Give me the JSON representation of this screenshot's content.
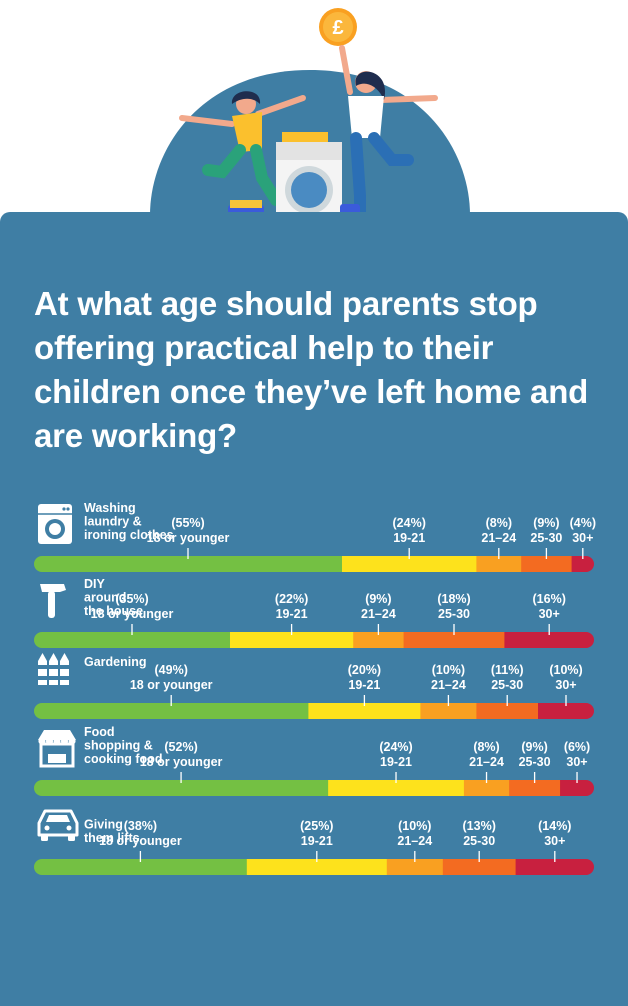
{
  "title": "At what age should parents stop offering practical help to their children once they’ve left home and are working?",
  "colors": {
    "background": "#3f7ea4",
    "segments": [
      "#74c043",
      "#fde21c",
      "#f9a021",
      "#f36b21",
      "#c8203f"
    ]
  },
  "chart_data": {
    "type": "bar",
    "orientation": "horizontal-stacked",
    "title": "At what age should parents stop offering practical help to their children once they’ve left home and are working?",
    "series_names": [
      "18 or younger",
      "19-21",
      "21–24",
      "25-30",
      "30+"
    ],
    "rows": [
      {
        "lines": [
          "Washing",
          "laundry &",
          "ironing clothes"
        ],
        "icon": "washing-machine-icon",
        "values": [
          55,
          24,
          8,
          9,
          4
        ],
        "pct": [
          "(55%)",
          "(24%)",
          "(8%)",
          "(9%)",
          "(4%)"
        ],
        "ages": [
          "18 or younger",
          "19-21",
          "21–24",
          "25-30",
          "30+"
        ]
      },
      {
        "lines": [
          "DIY",
          "around",
          "the house"
        ],
        "icon": "hammer-icon",
        "values": [
          35,
          22,
          9,
          18,
          16
        ],
        "pct": [
          "(35%)",
          "(22%)",
          "(9%)",
          "(18%)",
          "(16%)"
        ],
        "ages": [
          "18 or younger",
          "19-21",
          "21–24",
          "25-30",
          "30+"
        ]
      },
      {
        "lines": [
          "Gardening"
        ],
        "icon": "fence-icon",
        "values": [
          49,
          20,
          10,
          11,
          10
        ],
        "pct": [
          "(49%)",
          "(20%)",
          "(10%)",
          "(11%)",
          "(10%)"
        ],
        "ages": [
          "18 or younger",
          "19-21",
          "21–24",
          "25-30",
          "30+"
        ]
      },
      {
        "lines": [
          "Food",
          "shopping &",
          "cooking food"
        ],
        "icon": "shop-icon",
        "values": [
          52,
          24,
          8,
          9,
          6
        ],
        "pct": [
          "(52%)",
          "(24%)",
          "(8%)",
          "(9%)",
          "(6%)"
        ],
        "ages": [
          "18 or younger",
          "19-21",
          "21–24",
          "25-30",
          "30+"
        ]
      },
      {
        "lines": [
          "Giving",
          "them lifts"
        ],
        "icon": "car-icon",
        "values": [
          38,
          25,
          10,
          13,
          14
        ],
        "pct": [
          "(38%)",
          "(25%)",
          "(10%)",
          "(13%)",
          "(14%)"
        ],
        "ages": [
          "18 or younger",
          "19-21",
          "21–24",
          "25-30",
          "30+"
        ]
      }
    ]
  }
}
